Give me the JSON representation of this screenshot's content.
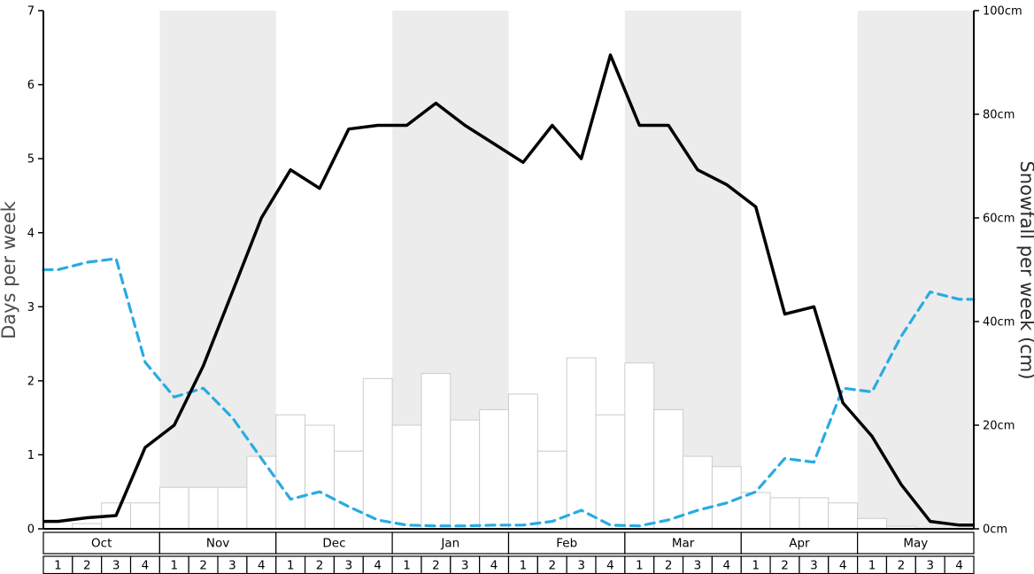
{
  "chart_data": {
    "type": "line+bar",
    "months": [
      {
        "name": "Oct",
        "shaded": false
      },
      {
        "name": "Nov",
        "shaded": true
      },
      {
        "name": "Dec",
        "shaded": false
      },
      {
        "name": "Jan",
        "shaded": true
      },
      {
        "name": "Feb",
        "shaded": false
      },
      {
        "name": "Mar",
        "shaded": true
      },
      {
        "name": "Apr",
        "shaded": false
      },
      {
        "name": "May",
        "shaded": true
      }
    ],
    "week_labels": [
      "1",
      "2",
      "3",
      "4"
    ],
    "left_axis": {
      "label": "Days per week",
      "min": 0,
      "max": 7,
      "ticks": [
        "0",
        "1",
        "2",
        "3",
        "4",
        "5",
        "6",
        "7"
      ]
    },
    "right_axis": {
      "label": "Snowfall per week (cm)",
      "min": 0,
      "max": 100,
      "ticks": [
        {
          "value": 0,
          "label": "0cm"
        },
        {
          "value": 20,
          "label": "20cm"
        },
        {
          "value": 40,
          "label": "40cm"
        },
        {
          "value": 60,
          "label": "60cm"
        },
        {
          "value": 80,
          "label": "80cm"
        },
        {
          "value": 100,
          "label": "100cm"
        }
      ]
    },
    "colors": {
      "band": "#ececec",
      "snow_days_line": "#000000",
      "sun_days_line": "#29abe2",
      "bar_fill": "#ffffff",
      "bar_stroke": "#cccccc"
    },
    "series": {
      "snow_days_per_week": [
        0.1,
        0.15,
        0.18,
        1.1,
        1.4,
        2.2,
        3.2,
        4.2,
        4.85,
        4.6,
        5.4,
        5.45,
        5.45,
        5.75,
        5.45,
        5.2,
        4.95,
        5.45,
        5.0,
        6.4,
        5.45,
        5.45,
        4.85,
        4.65,
        4.35,
        2.9,
        3.0,
        1.7,
        1.25,
        0.6,
        0.1,
        0.05
      ],
      "sun_days_per_week": [
        3.5,
        3.6,
        3.65,
        2.25,
        1.78,
        1.9,
        1.5,
        0.95,
        0.4,
        0.5,
        0.3,
        0.12,
        0.05,
        0.04,
        0.04,
        0.05,
        0.05,
        0.1,
        0.25,
        0.05,
        0.04,
        0.12,
        0.25,
        0.35,
        0.5,
        0.95,
        0.9,
        1.9,
        1.85,
        2.6,
        3.2,
        3.1
      ],
      "snowfall_cm_per_week": [
        0,
        1,
        5,
        5,
        8,
        8,
        8,
        14,
        22,
        20,
        15,
        29,
        20,
        30,
        21,
        23,
        26,
        15,
        33,
        22,
        32,
        23,
        14,
        12,
        7,
        6,
        6,
        5,
        2,
        0.5,
        0,
        0
      ]
    }
  }
}
